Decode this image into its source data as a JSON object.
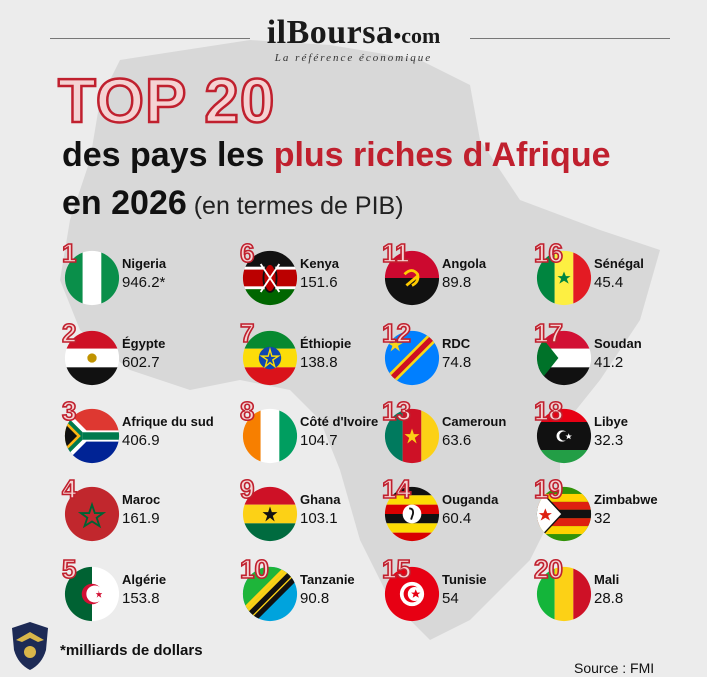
{
  "brand": {
    "name": "ilBoursa",
    "suffix": "•com",
    "tagline": "La référence économique"
  },
  "title": {
    "top": "TOP 20",
    "line1_prefix": "des pays les ",
    "line1_highlight": "plus riches d'Afrique",
    "line2_main": "en 2026",
    "line2_sub": " (en termes de PIB)"
  },
  "footnote": "*milliards de dollars",
  "source": "Source : FMI",
  "colors": {
    "accent": "#c0202e",
    "rank_fill": "#f4d3d3",
    "background": "#ececec",
    "map": "#d6d6d6"
  },
  "chart_data": {
    "type": "table",
    "title": "TOP 20 des pays les plus riches d'Afrique en 2026 (en termes de PIB)",
    "unit": "*milliards de dollars",
    "rows": [
      {
        "rank": "1",
        "country": "Nigeria",
        "value": "946.2*",
        "flag": "flag-nigeria"
      },
      {
        "rank": "2",
        "country": "Égypte",
        "value": "602.7",
        "flag": "flag-egypt"
      },
      {
        "rank": "3",
        "country": "Afrique du sud",
        "value": "406.9",
        "flag": "flag-south-africa"
      },
      {
        "rank": "4",
        "country": "Maroc",
        "value": "161.9",
        "flag": "flag-morocco"
      },
      {
        "rank": "5",
        "country": "Algérie",
        "value": "153.8",
        "flag": "flag-algeria"
      },
      {
        "rank": "6",
        "country": "Kenya",
        "value": "151.6",
        "flag": "flag-kenya"
      },
      {
        "rank": "7",
        "country": "Éthiopie",
        "value": "138.8",
        "flag": "flag-ethiopia"
      },
      {
        "rank": "8",
        "country": "Côté d'Ivoire",
        "value": "104.7",
        "flag": "flag-ivory-coast"
      },
      {
        "rank": "9",
        "country": "Ghana",
        "value": "103.1",
        "flag": "flag-ghana"
      },
      {
        "rank": "10",
        "country": "Tanzanie",
        "value": "90.8",
        "flag": "flag-tanzania"
      },
      {
        "rank": "11",
        "country": "Angola",
        "value": "89.8",
        "flag": "flag-angola"
      },
      {
        "rank": "12",
        "country": "RDC",
        "value": "74.8",
        "flag": "flag-drc"
      },
      {
        "rank": "13",
        "country": "Cameroun",
        "value": "63.6",
        "flag": "flag-cameroon"
      },
      {
        "rank": "14",
        "country": "Ouganda",
        "value": "60.4",
        "flag": "flag-uganda"
      },
      {
        "rank": "15",
        "country": "Tunisie",
        "value": "54",
        "flag": "flag-tunisia"
      },
      {
        "rank": "16",
        "country": "Sénégal",
        "value": "45.4",
        "flag": "flag-senegal"
      },
      {
        "rank": "17",
        "country": "Soudan",
        "value": "41.2",
        "flag": "flag-sudan"
      },
      {
        "rank": "18",
        "country": "Libye",
        "value": "32.3",
        "flag": "flag-libya"
      },
      {
        "rank": "19",
        "country": "Zimbabwe",
        "value": "32",
        "flag": "flag-zimbabwe"
      },
      {
        "rank": "20",
        "country": "Mali",
        "value": "28.8",
        "flag": "flag-mali"
      }
    ]
  }
}
